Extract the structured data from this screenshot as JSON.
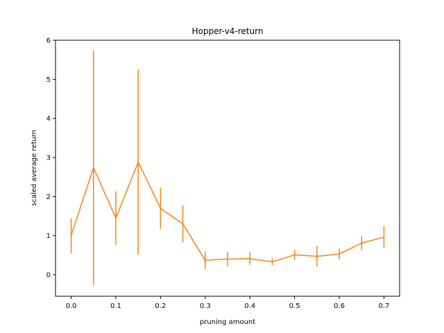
{
  "chart_data": {
    "type": "line",
    "title": "Hopper-v4-return",
    "xlabel": "pruning amount",
    "ylabel": "scaled average return",
    "xlim": [
      -0.035,
      0.735
    ],
    "ylim": [
      -0.55,
      6.0
    ],
    "xticks": [
      0.0,
      0.1,
      0.2,
      0.3,
      0.4,
      0.5,
      0.6,
      0.7
    ],
    "xtick_labels": [
      "0.0",
      "0.1",
      "0.2",
      "0.3",
      "0.4",
      "0.5",
      "0.6",
      "0.7"
    ],
    "yticks": [
      0,
      1,
      2,
      3,
      4,
      5,
      6
    ],
    "ytick_labels": [
      "0",
      "1",
      "2",
      "3",
      "4",
      "5",
      "6"
    ],
    "grid": false,
    "series": [
      {
        "name": "Hopper-v4",
        "color": "#ff7f0e",
        "x": [
          0.0,
          0.05,
          0.1,
          0.15,
          0.2,
          0.25,
          0.3,
          0.35,
          0.4,
          0.45,
          0.5,
          0.55,
          0.6,
          0.65,
          0.7
        ],
        "y": [
          1.0,
          2.74,
          1.45,
          2.88,
          1.7,
          1.3,
          0.37,
          0.4,
          0.41,
          0.33,
          0.51,
          0.47,
          0.53,
          0.81,
          0.96
        ],
        "yerr": [
          0.45,
          3.0,
          0.68,
          2.37,
          0.53,
          0.47,
          0.22,
          0.18,
          0.16,
          0.09,
          0.13,
          0.26,
          0.14,
          0.18,
          0.28
        ]
      }
    ]
  }
}
